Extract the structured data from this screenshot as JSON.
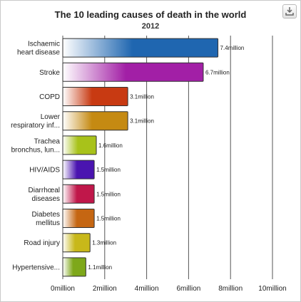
{
  "chart_data": {
    "type": "bar",
    "orientation": "horizontal",
    "title": "The 10 leading causes of death in the world",
    "subtitle": "2012",
    "categories": [
      [
        "Ischaemic",
        "heart disease"
      ],
      [
        "Stroke"
      ],
      [
        "COPD"
      ],
      [
        "Lower",
        "respiratory inf..."
      ],
      [
        "Trachea",
        "bronchus, lun..."
      ],
      [
        "HIV/AIDS"
      ],
      [
        "Diarrhœal",
        "diseases"
      ],
      [
        "Diabetes",
        "mellitus"
      ],
      [
        "Road injury"
      ],
      [
        "Hypertensive..."
      ]
    ],
    "values": [
      7.4,
      6.7,
      3.1,
      3.1,
      1.6,
      1.5,
      1.5,
      1.5,
      1.3,
      1.1
    ],
    "value_labels": [
      "7.4million",
      "6.7million",
      "3.1million",
      "3.1million",
      "1.6million",
      "1.5million",
      "1.5million",
      "1.5million",
      "1.3million",
      "1.1million"
    ],
    "colors": [
      "#1f66b0",
      "#a21fa6",
      "#c83a12",
      "#c58a12",
      "#a8c21a",
      "#4a14b0",
      "#c0174a",
      "#c56612",
      "#c8b81a",
      "#7ea81a"
    ],
    "xlim": [
      0,
      10
    ],
    "x_ticks": [
      0,
      2,
      4,
      6,
      8,
      10
    ],
    "x_tick_labels": [
      "0million",
      "2million",
      "4million",
      "6million",
      "8million",
      "10million"
    ],
    "grid": "vertical",
    "legend": "none"
  },
  "toolbar": {
    "export_icon": "export-icon"
  }
}
